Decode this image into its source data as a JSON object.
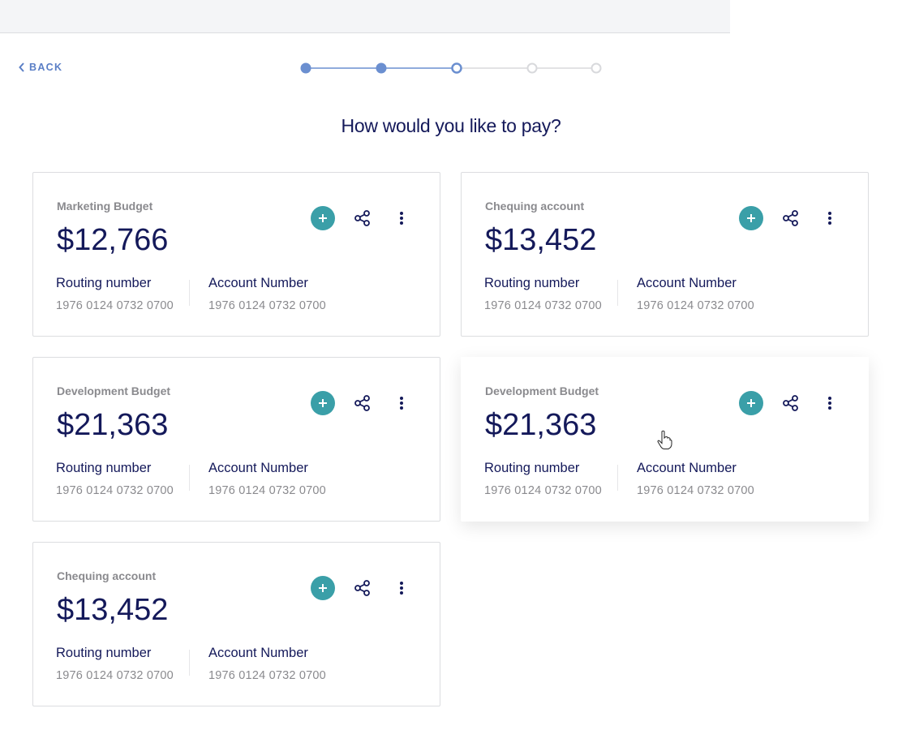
{
  "back": "BACK",
  "title": "How would you like to pay?",
  "accounts": [
    {
      "name": "Marketing Budget",
      "amount": "$12,766",
      "routing_label": "Routing number",
      "routing_number": "1976 0124 0732 0700",
      "account_label": "Account Number",
      "account_number": "1976 0124 0732 0700"
    },
    {
      "name": "Chequing account",
      "amount": "$13,452",
      "routing_label": "Routing number",
      "routing_number": "1976 0124 0732 0700",
      "account_label": "Account Number",
      "account_number": "1976 0124 0732 0700"
    },
    {
      "name": "Development Budget",
      "amount": "$21,363",
      "routing_label": "Routing number",
      "routing_number": "1976 0124 0732 0700",
      "account_label": "Account Number",
      "account_number": "1976 0124 0732 0700"
    },
    {
      "name": "Development Budget",
      "amount": "$21,363",
      "routing_label": "Routing number",
      "routing_number": "1976 0124 0732 0700",
      "account_label": "Account Number",
      "account_number": "1976 0124 0732 0700"
    },
    {
      "name": "Chequing account",
      "amount": "$13,452",
      "routing_label": "Routing number",
      "routing_number": "1976 0124 0732 0700",
      "account_label": "Account Number",
      "account_number": "1976 0124 0732 0700"
    }
  ]
}
